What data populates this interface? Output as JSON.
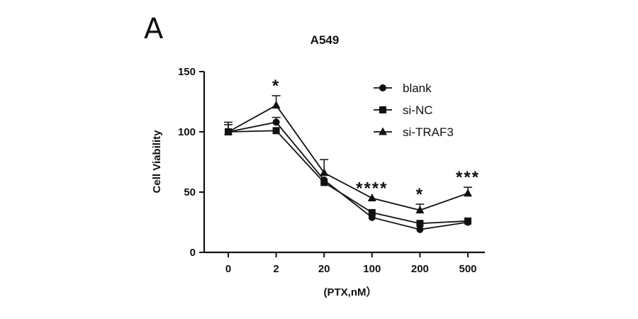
{
  "panel_label": "A",
  "chart_data": {
    "type": "line",
    "title": "A549",
    "xlabel": "(PTX,nM）",
    "ylabel": "Cell Viability",
    "categories": [
      "0",
      "2",
      "20",
      "100",
      "200",
      "500"
    ],
    "ylim": [
      0,
      150
    ],
    "yticks": [
      0,
      50,
      100,
      150
    ],
    "legend_position": "top-right",
    "series": [
      {
        "name": "blank",
        "marker": "circle",
        "values": [
          100,
          108,
          60,
          29,
          19,
          25
        ],
        "errors": [
          0,
          4,
          0,
          0,
          0,
          0
        ]
      },
      {
        "name": "si-NC",
        "marker": "square",
        "values": [
          100,
          101,
          58,
          33,
          24,
          26
        ],
        "errors": [
          8,
          0,
          0,
          0,
          0,
          0
        ]
      },
      {
        "name": "si-TRAF3",
        "marker": "triangle",
        "values": [
          100,
          122,
          66,
          45,
          35,
          49
        ],
        "errors": [
          6,
          8,
          11,
          0,
          5,
          5
        ]
      }
    ],
    "significance": [
      "",
      "*",
      "",
      "****",
      "*",
      "***"
    ]
  }
}
